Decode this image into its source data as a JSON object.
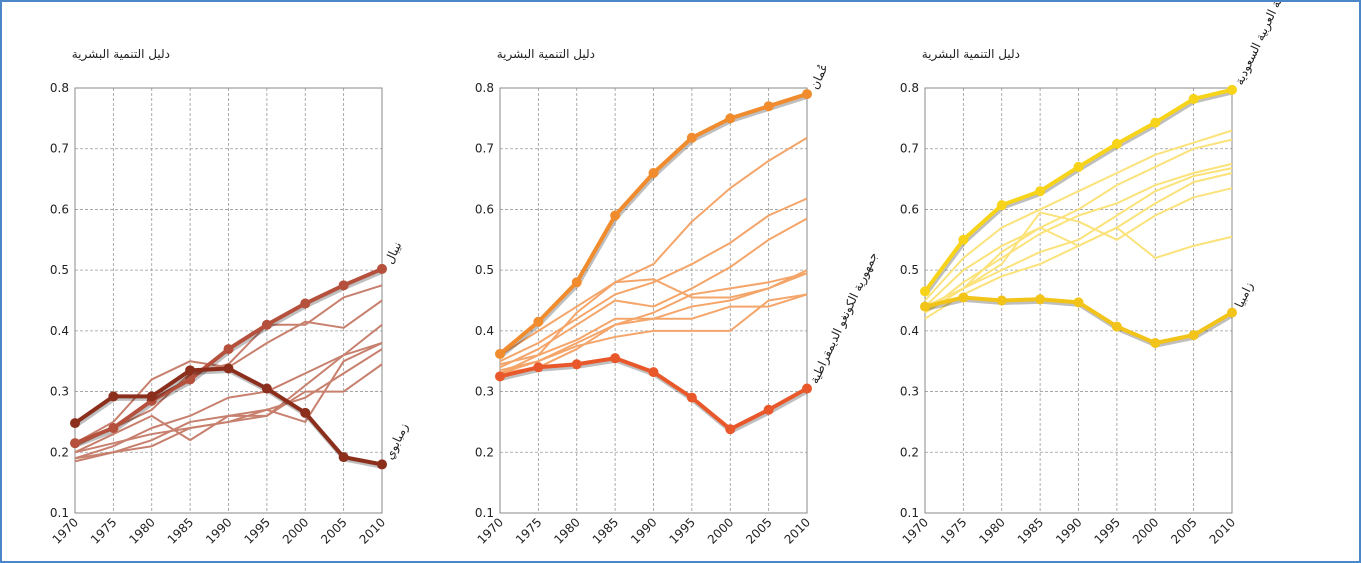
{
  "chart_data": [
    {
      "type": "line",
      "y_label": "دليل التنمية البشرية",
      "x": [
        1970,
        1975,
        1980,
        1985,
        1990,
        1995,
        2000,
        2005,
        2010
      ],
      "xlim": [
        1970,
        2010
      ],
      "xticks": [
        1970,
        1975,
        1980,
        1985,
        1990,
        1995,
        2000,
        2005,
        2010
      ],
      "ylim": [
        0.1,
        0.8
      ],
      "yticks": [
        0.1,
        0.2,
        0.3,
        0.4,
        0.5,
        0.6,
        0.7,
        0.8
      ],
      "grid": true,
      "series": [
        {
          "color": "#c8806e",
          "values": [
            0.21,
            0.24,
            0.27,
            0.33,
            0.345,
            0.41,
            0.41,
            0.455,
            0.475
          ]
        },
        {
          "color": "#c8806e",
          "values": [
            0.215,
            0.25,
            0.32,
            0.35,
            0.34,
            0.38,
            0.415,
            0.405,
            0.45
          ]
        },
        {
          "color": "#c8806e",
          "values": [
            0.19,
            0.21,
            0.24,
            0.26,
            0.29,
            0.3,
            0.33,
            0.36,
            0.41
          ]
        },
        {
          "color": "#c8806e",
          "values": [
            0.2,
            0.23,
            0.26,
            0.22,
            0.26,
            0.26,
            0.31,
            0.36,
            0.38
          ]
        },
        {
          "color": "#c8806e",
          "values": [
            0.19,
            0.2,
            0.22,
            0.25,
            0.26,
            0.27,
            0.29,
            0.33,
            0.37
          ]
        },
        {
          "color": "#c8806e",
          "values": [
            0.185,
            0.2,
            0.21,
            0.24,
            0.25,
            0.26,
            0.3,
            0.3,
            0.345
          ]
        },
        {
          "color": "#c8806e",
          "values": [
            0.2,
            0.215,
            0.23,
            0.24,
            0.25,
            0.27,
            0.25,
            0.35,
            0.38
          ]
        },
        {
          "name": "نيبال",
          "color": "#b5503d",
          "markers": true,
          "values": [
            0.215,
            0.24,
            0.285,
            0.32,
            0.37,
            0.41,
            0.445,
            0.475,
            0.502
          ]
        },
        {
          "name": "زمبابوي",
          "color": "#8b2e1c",
          "markers": true,
          "values": [
            0.248,
            0.292,
            0.292,
            0.335,
            0.338,
            0.305,
            0.265,
            0.192,
            0.18
          ]
        }
      ]
    },
    {
      "type": "line",
      "y_label": "دليل التنمية البشرية",
      "x": [
        1970,
        1975,
        1980,
        1985,
        1990,
        1995,
        2000,
        2005,
        2010
      ],
      "xlim": [
        1970,
        2010
      ],
      "xticks": [
        1970,
        1975,
        1980,
        1985,
        1990,
        1995,
        2000,
        2005,
        2010
      ],
      "ylim": [
        0.1,
        0.8
      ],
      "yticks": [
        0.1,
        0.2,
        0.3,
        0.4,
        0.5,
        0.6,
        0.7,
        0.8
      ],
      "grid": true,
      "series": [
        {
          "color": "#f4a56a",
          "values": [
            0.36,
            0.4,
            0.44,
            0.48,
            0.51,
            0.58,
            0.635,
            0.68,
            0.718
          ]
        },
        {
          "color": "#f4a56a",
          "values": [
            0.35,
            0.38,
            0.42,
            0.46,
            0.48,
            0.51,
            0.545,
            0.59,
            0.618
          ]
        },
        {
          "color": "#f4a56a",
          "values": [
            0.34,
            0.37,
            0.41,
            0.45,
            0.44,
            0.47,
            0.505,
            0.55,
            0.585
          ]
        },
        {
          "color": "#f4a56a",
          "values": [
            0.345,
            0.36,
            0.43,
            0.48,
            0.485,
            0.455,
            0.455,
            0.47,
            0.5
          ]
        },
        {
          "color": "#f4a56a",
          "values": [
            0.33,
            0.36,
            0.385,
            0.42,
            0.42,
            0.44,
            0.45,
            0.47,
            0.495
          ]
        },
        {
          "color": "#f4a56a",
          "values": [
            0.335,
            0.35,
            0.38,
            0.41,
            0.43,
            0.46,
            0.47,
            0.48,
            0.495
          ]
        },
        {
          "color": "#f4a56a",
          "values": [
            0.33,
            0.35,
            0.375,
            0.39,
            0.4,
            0.4,
            0.4,
            0.45,
            0.46
          ]
        },
        {
          "color": "#f4a56a",
          "values": [
            0.33,
            0.34,
            0.37,
            0.41,
            0.42,
            0.42,
            0.44,
            0.44,
            0.46
          ]
        },
        {
          "name": "عُمان",
          "color": "#f08c2e",
          "markers": true,
          "values": [
            0.362,
            0.415,
            0.48,
            0.59,
            0.66,
            0.718,
            0.75,
            0.77,
            0.79
          ]
        },
        {
          "name": "جمهورية الكونغو الديمقراطية",
          "color": "#e8582a",
          "markers": true,
          "values": [
            0.325,
            0.34,
            0.345,
            0.355,
            0.332,
            0.29,
            0.238,
            0.27,
            0.305
          ]
        }
      ]
    },
    {
      "type": "line",
      "y_label": "دليل التنمية البشرية",
      "x": [
        1970,
        1975,
        1980,
        1985,
        1990,
        1995,
        2000,
        2005,
        2010
      ],
      "xlim": [
        1970,
        2010
      ],
      "xticks": [
        1970,
        1975,
        1980,
        1985,
        1990,
        1995,
        2000,
        2005,
        2010
      ],
      "ylim": [
        0.1,
        0.8
      ],
      "yticks": [
        0.1,
        0.2,
        0.3,
        0.4,
        0.5,
        0.6,
        0.7,
        0.8
      ],
      "grid": true,
      "series": [
        {
          "color": "#fbe27a",
          "values": [
            0.45,
            0.52,
            0.57,
            0.6,
            0.63,
            0.66,
            0.69,
            0.71,
            0.73
          ]
        },
        {
          "color": "#fbe27a",
          "values": [
            0.44,
            0.5,
            0.54,
            0.57,
            0.6,
            0.64,
            0.67,
            0.7,
            0.715
          ]
        },
        {
          "color": "#fbe27a",
          "values": [
            0.43,
            0.48,
            0.52,
            0.56,
            0.59,
            0.61,
            0.64,
            0.66,
            0.675
          ]
        },
        {
          "color": "#fbe27a",
          "values": [
            0.43,
            0.47,
            0.5,
            0.53,
            0.55,
            0.59,
            0.63,
            0.655,
            0.668
          ]
        },
        {
          "color": "#fbe27a",
          "values": [
            0.42,
            0.46,
            0.49,
            0.51,
            0.54,
            0.57,
            0.61,
            0.645,
            0.66
          ]
        },
        {
          "color": "#fbe27a",
          "values": [
            0.44,
            0.47,
            0.51,
            0.595,
            0.58,
            0.55,
            0.59,
            0.62,
            0.635
          ]
        },
        {
          "color": "#fbe27a",
          "values": [
            0.43,
            0.47,
            0.53,
            0.57,
            0.54,
            0.57,
            0.52,
            0.54,
            0.555
          ]
        },
        {
          "name": "المملكة العربية السعودية",
          "color": "#f7d31a",
          "markers": true,
          "values": [
            0.465,
            0.55,
            0.607,
            0.63,
            0.67,
            0.708,
            0.743,
            0.782,
            0.797
          ]
        },
        {
          "name": "زامبيا",
          "color": "#f2c318",
          "markers": true,
          "values": [
            0.44,
            0.455,
            0.45,
            0.452,
            0.447,
            0.407,
            0.38,
            0.393,
            0.43
          ]
        }
      ]
    }
  ]
}
